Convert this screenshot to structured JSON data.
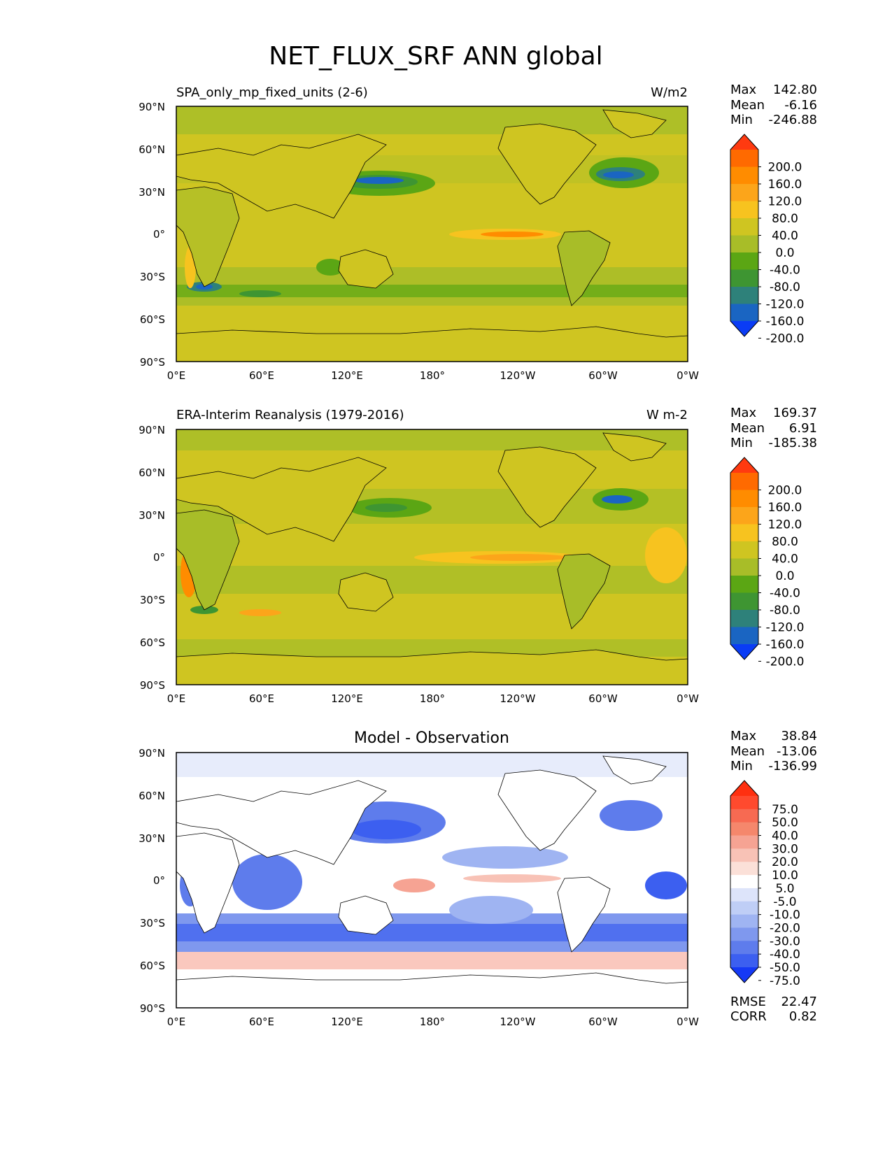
{
  "figure_title": "NET_FLUX_SRF ANN global",
  "lat_ticks": [
    "90°N",
    "60°N",
    "30°N",
    "0°",
    "30°S",
    "60°S",
    "90°S"
  ],
  "lon_ticks": [
    "0°E",
    "60°E",
    "120°E",
    "180°",
    "120°W",
    "60°W",
    "0°W"
  ],
  "panels": [
    {
      "title_left": "SPA_only_mp_fixed_units (2-6)",
      "title_right": "W/m2",
      "title_center": "",
      "stats": [
        {
          "label": "Max",
          "value": "142.80"
        },
        {
          "label": "Mean",
          "value": "-6.16"
        },
        {
          "label": "Min",
          "value": "-246.88"
        }
      ],
      "colorbar_labels": [
        "200.0",
        "160.0",
        "120.0",
        "80.0",
        "40.0",
        "0.0",
        "-40.0",
        "-80.0",
        "-120.0",
        "-160.0",
        "-200.0"
      ],
      "colorbar_colors": [
        "#ff3a10",
        "#ff6a00",
        "#ff8c00",
        "#fca51a",
        "#f7c31f",
        "#cfc521",
        "#a8bd28",
        "#5ba614",
        "#3e9532",
        "#2e817a",
        "#1a65c2",
        "#0a3cf5"
      ]
    },
    {
      "title_left": "ERA-Interim Reanalysis (1979-2016)",
      "title_right": "W m-2",
      "title_center": "",
      "stats": [
        {
          "label": "Max",
          "value": "169.37"
        },
        {
          "label": "Mean",
          "value": "6.91"
        },
        {
          "label": "Min",
          "value": "-185.38"
        }
      ],
      "colorbar_labels": [
        "200.0",
        "160.0",
        "120.0",
        "80.0",
        "40.0",
        "0.0",
        "-40.0",
        "-80.0",
        "-120.0",
        "-160.0",
        "-200.0"
      ],
      "colorbar_colors": [
        "#ff3a10",
        "#ff6a00",
        "#ff8c00",
        "#fca51a",
        "#f7c31f",
        "#cfc521",
        "#a8bd28",
        "#5ba614",
        "#3e9532",
        "#2e817a",
        "#1a65c2",
        "#0a3cf5"
      ]
    },
    {
      "title_left": "",
      "title_right": "",
      "title_center": "Model - Observation",
      "stats": [
        {
          "label": "Max",
          "value": "38.84"
        },
        {
          "label": "Mean",
          "value": "-13.06"
        },
        {
          "label": "Min",
          "value": "-136.99"
        }
      ],
      "colorbar_labels": [
        "75.0",
        "50.0",
        "40.0",
        "30.0",
        "20.0",
        "10.0",
        "5.0",
        "-5.0",
        "-10.0",
        "-20.0",
        "-30.0",
        "-40.0",
        "-50.0",
        "-75.0"
      ],
      "colorbar_colors": [
        "#ff3010",
        "#ff4a2e",
        "#f76a52",
        "#f5876c",
        "#f6a393",
        "#f8c2b6",
        "#fbe0d8",
        "#ffffff",
        "#dde4fa",
        "#bfcef6",
        "#9fb4f2",
        "#7f98ee",
        "#5e7cec",
        "#3c5ff0",
        "#1539f5"
      ],
      "bottom_stats": [
        {
          "label": "RMSE",
          "value": "22.47"
        },
        {
          "label": "CORR",
          "value": "0.82"
        }
      ]
    }
  ],
  "chart_data": [
    {
      "type": "heatmap",
      "title": "SPA_only_mp_fixed_units (2-6)",
      "units": "W/m2",
      "levels": [
        -200,
        -160,
        -120,
        -80,
        -40,
        0,
        40,
        80,
        120,
        160,
        200
      ],
      "x_range": [
        0,
        360
      ],
      "y_range": [
        -90,
        90
      ],
      "max": 142.8,
      "mean": -6.16,
      "min": -246.88
    },
    {
      "type": "heatmap",
      "title": "ERA-Interim Reanalysis (1979-2016)",
      "units": "W m-2",
      "levels": [
        -200,
        -160,
        -120,
        -80,
        -40,
        0,
        40,
        80,
        120,
        160,
        200
      ],
      "x_range": [
        0,
        360
      ],
      "y_range": [
        -90,
        90
      ],
      "max": 169.37,
      "mean": 6.91,
      "min": -185.38
    },
    {
      "type": "heatmap",
      "title": "Model - Observation",
      "levels": [
        -75,
        -50,
        -40,
        -30,
        -20,
        -10,
        -5,
        5,
        10,
        20,
        30,
        40,
        50,
        75
      ],
      "x_range": [
        0,
        360
      ],
      "y_range": [
        -90,
        90
      ],
      "max": 38.84,
      "mean": -13.06,
      "min": -136.99,
      "rmse": 22.47,
      "corr": 0.82
    }
  ]
}
